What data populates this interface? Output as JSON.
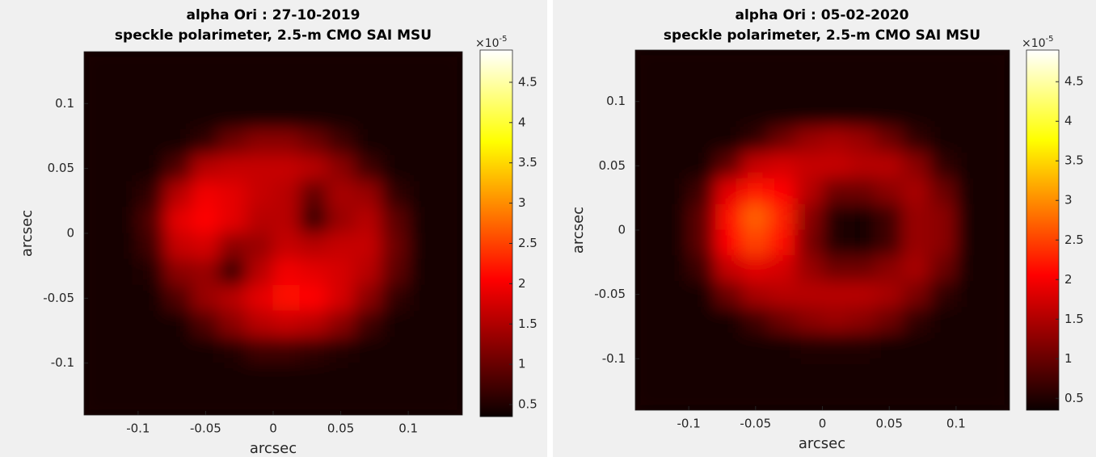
{
  "chart_data": [
    {
      "type": "heatmap",
      "title": [
        "alpha Ori : 27-10-2019",
        "speckle polarimeter, 2.5-m CMO SAI MSU"
      ],
      "x_label": "arcsec",
      "y_label": "arcsec",
      "xlim": [
        -0.14,
        0.14
      ],
      "ylim": [
        -0.14,
        0.14
      ],
      "xticks": [
        -0.1,
        -0.05,
        0,
        0.05,
        0.1
      ],
      "yticks": [
        -0.1,
        -0.05,
        0,
        0.05,
        0.1
      ],
      "x": [
        -0.13,
        -0.11,
        -0.09,
        -0.07,
        -0.05,
        -0.03,
        -0.01,
        0.01,
        0.03,
        0.05,
        0.07,
        0.09,
        0.11,
        0.13
      ],
      "y": [
        0.13,
        0.11,
        0.09,
        0.07,
        0.05,
        0.03,
        0.01,
        -0.01,
        -0.03,
        -0.05,
        -0.07,
        -0.09,
        -0.11,
        -0.13
      ],
      "values": [
        [
          0.4,
          0.4,
          0.4,
          0.4,
          0.4,
          0.4,
          0.4,
          0.4,
          0.4,
          0.4,
          0.4,
          0.4,
          0.4,
          0.4
        ],
        [
          0.4,
          0.4,
          0.4,
          0.4,
          0.4,
          0.4,
          0.4,
          0.4,
          0.4,
          0.4,
          0.4,
          0.4,
          0.4,
          0.4
        ],
        [
          0.4,
          0.4,
          0.4,
          0.4,
          0.4,
          0.4,
          0.4,
          0.4,
          0.4,
          0.4,
          0.4,
          0.4,
          0.4,
          0.4
        ],
        [
          0.4,
          0.4,
          0.4,
          0.4,
          0.6,
          1.0,
          1.2,
          1.2,
          1.0,
          0.7,
          0.4,
          0.4,
          0.4,
          0.4
        ],
        [
          0.4,
          0.4,
          0.4,
          0.8,
          1.5,
          1.6,
          1.6,
          1.6,
          1.5,
          1.2,
          0.7,
          0.4,
          0.4,
          0.4
        ],
        [
          0.4,
          0.4,
          0.6,
          1.5,
          1.9,
          1.8,
          1.6,
          1.5,
          0.9,
          1.4,
          1.3,
          0.6,
          0.4,
          0.4
        ],
        [
          0.4,
          0.4,
          0.8,
          1.8,
          2.0,
          1.8,
          1.5,
          1.5,
          0.6,
          1.3,
          1.5,
          0.9,
          0.4,
          0.4
        ],
        [
          0.4,
          0.4,
          0.7,
          1.6,
          1.7,
          1.2,
          1.3,
          1.6,
          1.5,
          1.6,
          1.6,
          1.0,
          0.4,
          0.4
        ],
        [
          0.4,
          0.4,
          0.5,
          1.2,
          1.3,
          0.6,
          1.5,
          1.9,
          1.8,
          1.7,
          1.5,
          0.9,
          0.4,
          0.4
        ],
        [
          0.4,
          0.4,
          0.4,
          0.8,
          1.3,
          1.5,
          1.8,
          2.1,
          2.0,
          1.7,
          1.2,
          0.6,
          0.4,
          0.4
        ],
        [
          0.4,
          0.4,
          0.4,
          0.4,
          0.8,
          1.2,
          1.5,
          1.6,
          1.5,
          1.2,
          0.7,
          0.4,
          0.4,
          0.4
        ],
        [
          0.4,
          0.4,
          0.4,
          0.4,
          0.4,
          0.5,
          0.7,
          0.7,
          0.6,
          0.5,
          0.4,
          0.4,
          0.4,
          0.4
        ],
        [
          0.4,
          0.4,
          0.4,
          0.4,
          0.4,
          0.4,
          0.4,
          0.4,
          0.4,
          0.4,
          0.4,
          0.4,
          0.4,
          0.4
        ],
        [
          0.4,
          0.4,
          0.4,
          0.4,
          0.4,
          0.4,
          0.4,
          0.4,
          0.4,
          0.4,
          0.4,
          0.4,
          0.4,
          0.4
        ]
      ],
      "colormap": "hot",
      "clim": [
        0.35,
        4.9
      ],
      "cticks": [
        0.5,
        1,
        1.5,
        2,
        2.5,
        3,
        3.5,
        4,
        4.5
      ],
      "colorbar_scale": [
        "×10",
        "-5"
      ]
    },
    {
      "type": "heatmap",
      "title": [
        "alpha Ori : 05-02-2020",
        "speckle polarimeter, 2.5-m CMO SAI MSU"
      ],
      "x_label": "arcsec",
      "y_label": "arcsec",
      "xlim": [
        -0.14,
        0.14
      ],
      "ylim": [
        -0.14,
        0.14
      ],
      "xticks": [
        -0.1,
        -0.05,
        0,
        0.05,
        0.1
      ],
      "yticks": [
        -0.1,
        -0.05,
        0,
        0.05,
        0.1
      ],
      "x": [
        -0.13,
        -0.11,
        -0.09,
        -0.07,
        -0.05,
        -0.03,
        -0.01,
        0.01,
        0.03,
        0.05,
        0.07,
        0.09,
        0.11,
        0.13
      ],
      "y": [
        0.13,
        0.11,
        0.09,
        0.07,
        0.05,
        0.03,
        0.01,
        -0.01,
        -0.03,
        -0.05,
        -0.07,
        -0.09,
        -0.11,
        -0.13
      ],
      "values": [
        [
          0.4,
          0.4,
          0.4,
          0.4,
          0.4,
          0.4,
          0.4,
          0.4,
          0.4,
          0.4,
          0.4,
          0.4,
          0.4,
          0.4
        ],
        [
          0.4,
          0.4,
          0.4,
          0.4,
          0.4,
          0.4,
          0.4,
          0.4,
          0.4,
          0.4,
          0.4,
          0.4,
          0.4,
          0.4
        ],
        [
          0.4,
          0.4,
          0.4,
          0.4,
          0.4,
          0.4,
          0.4,
          0.4,
          0.4,
          0.4,
          0.4,
          0.4,
          0.4,
          0.4
        ],
        [
          0.4,
          0.4,
          0.4,
          0.4,
          0.6,
          1.0,
          1.3,
          1.4,
          1.3,
          1.0,
          0.6,
          0.4,
          0.4,
          0.4
        ],
        [
          0.4,
          0.4,
          0.4,
          0.9,
          1.6,
          1.7,
          1.6,
          1.6,
          1.5,
          1.5,
          1.2,
          0.6,
          0.4,
          0.4
        ],
        [
          0.4,
          0.4,
          0.7,
          1.8,
          2.2,
          2.0,
          1.5,
          1.0,
          1.0,
          1.2,
          1.4,
          1.0,
          0.4,
          0.4
        ],
        [
          0.4,
          0.4,
          0.9,
          2.1,
          2.7,
          2.3,
          1.2,
          0.5,
          0.4,
          0.7,
          1.3,
          1.2,
          0.4,
          0.4
        ],
        [
          0.4,
          0.4,
          0.9,
          2.0,
          2.5,
          2.1,
          1.1,
          0.5,
          0.4,
          0.7,
          1.3,
          1.2,
          0.4,
          0.4
        ],
        [
          0.4,
          0.4,
          0.7,
          1.6,
          1.8,
          1.7,
          1.3,
          1.0,
          1.0,
          1.2,
          1.4,
          1.0,
          0.4,
          0.4
        ],
        [
          0.4,
          0.4,
          0.4,
          1.0,
          1.4,
          1.5,
          1.5,
          1.5,
          1.5,
          1.4,
          1.1,
          0.6,
          0.4,
          0.4
        ],
        [
          0.4,
          0.4,
          0.4,
          0.4,
          0.7,
          1.0,
          1.2,
          1.3,
          1.2,
          1.0,
          0.6,
          0.4,
          0.4,
          0.4
        ],
        [
          0.4,
          0.4,
          0.4,
          0.4,
          0.4,
          0.4,
          0.5,
          0.5,
          0.5,
          0.4,
          0.4,
          0.4,
          0.4,
          0.4
        ],
        [
          0.4,
          0.4,
          0.4,
          0.4,
          0.4,
          0.4,
          0.4,
          0.4,
          0.4,
          0.4,
          0.4,
          0.4,
          0.4,
          0.4
        ],
        [
          0.4,
          0.4,
          0.4,
          0.4,
          0.4,
          0.4,
          0.4,
          0.4,
          0.4,
          0.4,
          0.4,
          0.4,
          0.4,
          0.4
        ]
      ],
      "colormap": "hot",
      "clim": [
        0.35,
        4.9
      ],
      "cticks": [
        0.5,
        1,
        1.5,
        2,
        2.5,
        3,
        3.5,
        4,
        4.5
      ],
      "colorbar_scale": [
        "×10",
        "-5"
      ]
    }
  ]
}
